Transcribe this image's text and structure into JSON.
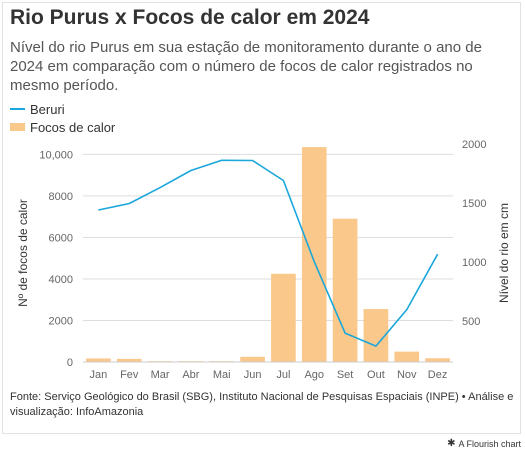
{
  "header": {
    "title": "Rio Purus x Focos de calor em 2024",
    "subtitle": "Nível do rio Purus em sua estação de monitoramento durante o ano de 2024 em comparação com o número de focos de calor registrados no mesmo período."
  },
  "colors": {
    "line": "#1aa7dc",
    "bar": "#fac88b",
    "text": "#333333",
    "axis_text": "#666666",
    "grid": "#dddddd"
  },
  "chart_data": {
    "type": "bar",
    "categories": [
      "Jan",
      "Fev",
      "Mar",
      "Abr",
      "Mai",
      "Jun",
      "Jul",
      "Ago",
      "Set",
      "Out",
      "Nov",
      "Dez"
    ],
    "series": [
      {
        "name": "Focos de calor",
        "type": "bar",
        "axis": "left",
        "values": [
          170,
          150,
          40,
          40,
          40,
          250,
          4250,
          10350,
          6900,
          2550,
          500,
          180
        ]
      },
      {
        "name": "Beruri",
        "type": "line",
        "axis": "right",
        "values": [
          1440,
          1495,
          1630,
          1775,
          1862,
          1860,
          1690,
          1000,
          395,
          285,
          595,
          1065
        ]
      }
    ],
    "left_axis": {
      "label": "Nº de focos de calor",
      "ylim": [
        0,
        10500
      ],
      "ticks": [
        0,
        2000,
        4000,
        6000,
        8000,
        10000
      ],
      "tick_labels": [
        "0",
        "2000",
        "4000",
        "6000",
        "8000",
        "10,000"
      ]
    },
    "right_axis": {
      "label": "Nível do rio em cm",
      "ylim": [
        150,
        2000
      ],
      "ticks": [
        500,
        1000,
        1500,
        2000
      ],
      "tick_labels": [
        "500",
        "1000",
        "1500",
        "2000"
      ]
    },
    "grid": true,
    "legend_position": "top-left"
  },
  "footer": {
    "source": "Fonte: Serviço Geológico do Brasil (SBG), Instituto Nacional de Pesquisas Espaciais (INPE) • Análise e visualização: InfoAmazonia",
    "credit": "A Flourish chart"
  }
}
